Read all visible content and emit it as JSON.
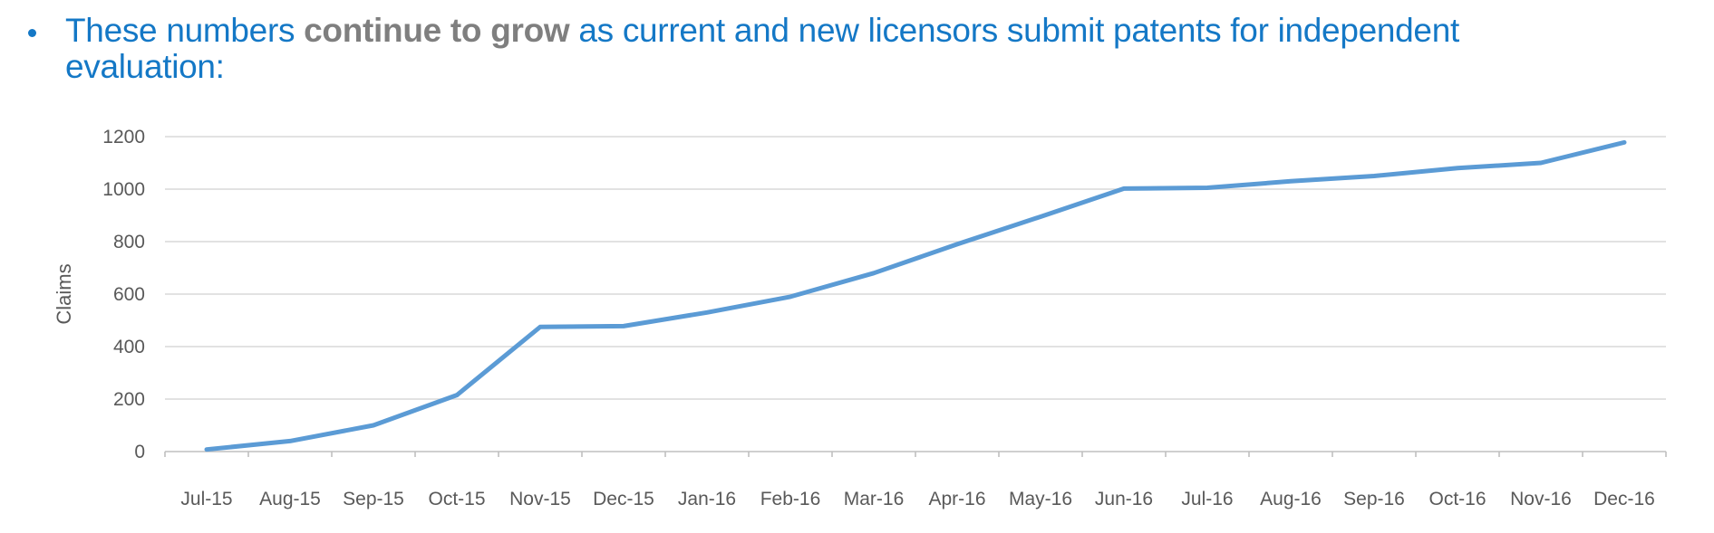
{
  "headline": {
    "bullet": "•",
    "seg1": "These numbers ",
    "seg2_bold": "continue to grow",
    "seg3": " as current and new licensors submit patents for independent evaluation:",
    "text_color": "#1478c6",
    "bold_color": "#7f7f7f"
  },
  "chart_data": {
    "type": "line",
    "title": "",
    "xlabel": "",
    "ylabel": "Claims",
    "categories": [
      "Jul-15",
      "Aug-15",
      "Sep-15",
      "Oct-15",
      "Nov-15",
      "Dec-15",
      "Jan-16",
      "Feb-16",
      "Mar-16",
      "Apr-16",
      "May-16",
      "Jun-16",
      "Jul-16",
      "Aug-16",
      "Sep-16",
      "Oct-16",
      "Nov-16",
      "Dec-16"
    ],
    "series": [
      {
        "name": "Claims",
        "values": [
          8,
          40,
          100,
          215,
          475,
          478,
          530,
          590,
          680,
          790,
          895,
          1002,
          1005,
          1030,
          1050,
          1080,
          1100,
          1178
        ]
      }
    ],
    "ylim": [
      0,
      1200
    ],
    "y_ticks": [
      0,
      200,
      400,
      600,
      800,
      1000,
      1200
    ],
    "grid": "horizontal",
    "legend": "none",
    "line_color": "#5b9bd5",
    "grid_color": "#d9d9d9",
    "axis_color": "#bfbfbf",
    "axis_text_color": "#595959"
  }
}
